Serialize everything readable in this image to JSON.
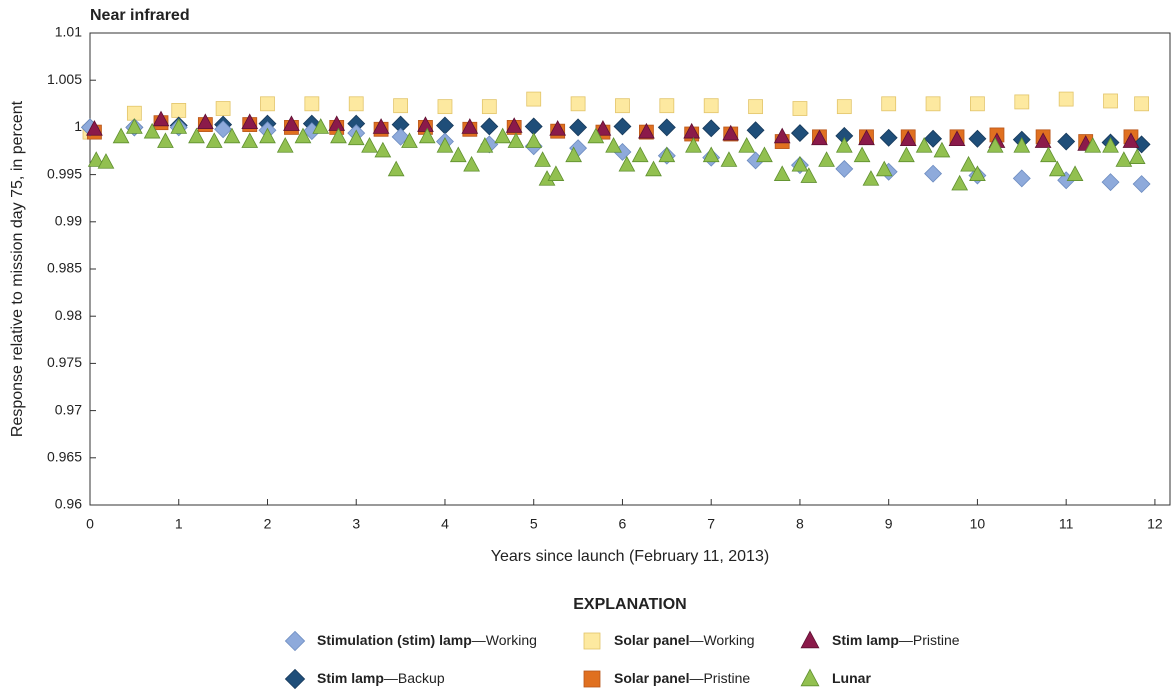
{
  "chart_data": {
    "type": "scatter",
    "title": "Near infrared",
    "xlabel": "Years since launch (February 11, 2013)",
    "ylabel": "Response relative to mission day 75, in percent",
    "legend_title": "EXPLANATION",
    "xlim": [
      0,
      12.17
    ],
    "ylim": [
      0.96,
      1.01
    ],
    "xticks": [
      0,
      1,
      2,
      3,
      4,
      5,
      6,
      7,
      8,
      9,
      10,
      11,
      12
    ],
    "yticks": [
      0.96,
      0.965,
      0.97,
      0.975,
      0.98,
      0.985,
      0.99,
      0.995,
      1,
      1.005,
      1.01
    ],
    "series": [
      {
        "name": "Stimulation (stim) lamp—Working",
        "marker": "diamond",
        "color": "#8eaadb",
        "x": [
          0,
          0.5,
          1,
          1.5,
          2,
          2.5,
          3,
          3.5,
          4,
          4.5,
          5,
          5.5,
          6,
          6.5,
          7,
          7.5,
          8,
          8.5,
          9,
          9.5,
          10,
          10.5,
          11,
          11.5,
          11.85
        ],
        "values": [
          1.0,
          1.0,
          1.0,
          0.9998,
          0.9997,
          0.9996,
          0.9994,
          0.999,
          0.9985,
          0.9982,
          0.998,
          0.9978,
          0.9974,
          0.997,
          0.9968,
          0.9965,
          0.996,
          0.9956,
          0.9953,
          0.9951,
          0.9949,
          0.9946,
          0.9944,
          0.9942,
          0.994
        ]
      },
      {
        "name": "Solar panel—Working",
        "marker": "square",
        "color": "#fde9a0",
        "x": [
          0,
          0.5,
          1,
          1.5,
          2,
          2.5,
          3,
          3.5,
          4,
          4.5,
          5,
          5.5,
          6,
          6.5,
          7,
          7.5,
          8,
          8.5,
          9,
          9.5,
          10,
          10.5,
          11,
          11.5,
          11.85
        ],
        "values": [
          0.9995,
          1.0015,
          1.0018,
          1.002,
          1.0025,
          1.0025,
          1.0025,
          1.0023,
          1.0022,
          1.0022,
          1.003,
          1.0025,
          1.0023,
          1.0023,
          1.0023,
          1.0022,
          1.002,
          1.0022,
          1.0025,
          1.0025,
          1.0025,
          1.0027,
          1.003,
          1.0028,
          1.0025
        ]
      },
      {
        "name": "Stim lamp—Pristine",
        "marker": "triangle",
        "color": "#8b1a4a",
        "x": [
          0.05,
          0.8,
          1.3,
          1.8,
          2.27,
          2.78,
          3.28,
          3.78,
          4.28,
          4.78,
          5.27,
          5.78,
          6.27,
          6.78,
          7.22,
          7.8,
          8.22,
          8.75,
          9.22,
          9.77,
          10.22,
          10.74,
          11.22,
          11.73
        ],
        "values": [
          0.9998,
          1.0008,
          1.0005,
          1.0005,
          1.0003,
          1.0003,
          1.0,
          1.0002,
          1.0,
          1.0001,
          0.9998,
          0.9998,
          0.9995,
          0.9995,
          0.9993,
          0.999,
          0.9988,
          0.9988,
          0.9987,
          0.9987,
          0.9985,
          0.9985,
          0.9982,
          0.9985
        ]
      },
      {
        "name": "Stim lamp—Backup",
        "marker": "diamond",
        "color": "#1f4e79",
        "x": [
          0,
          0.5,
          1,
          1.5,
          2,
          2.5,
          3,
          3.5,
          4,
          4.5,
          5,
          5.5,
          6,
          6.5,
          7,
          7.5,
          8,
          8.5,
          9,
          9.5,
          10,
          10.5,
          11,
          11.5,
          11.85
        ],
        "values": [
          1.0,
          1.0,
          1.0002,
          1.0003,
          1.0004,
          1.0004,
          1.0004,
          1.0003,
          1.0002,
          1.0001,
          1.0001,
          1.0,
          1.0001,
          1.0,
          0.9999,
          0.9997,
          0.9994,
          0.9991,
          0.9989,
          0.9988,
          0.9988,
          0.9987,
          0.9985,
          0.9984,
          0.9982
        ]
      },
      {
        "name": "Solar panel—Pristine",
        "marker": "square",
        "color": "#e07020",
        "x": [
          0.05,
          0.8,
          1.3,
          1.8,
          2.27,
          2.78,
          3.28,
          3.78,
          4.28,
          4.78,
          5.27,
          5.78,
          6.27,
          6.78,
          7.22,
          7.8,
          8.22,
          8.75,
          9.22,
          9.77,
          10.22,
          10.74,
          11.22,
          11.73
        ],
        "values": [
          0.9995,
          1.0005,
          1.0003,
          1.0003,
          1.0,
          1.0,
          0.9998,
          1.0,
          0.9998,
          1.0,
          0.9996,
          0.9995,
          0.9995,
          0.9993,
          0.9993,
          0.9985,
          0.999,
          0.999,
          0.999,
          0.999,
          0.9992,
          0.999,
          0.9985,
          0.999
        ]
      },
      {
        "name": "Lunar",
        "marker": "triangle",
        "color": "#92c050",
        "x": [
          0.07,
          0.18,
          0.35,
          0.5,
          0.7,
          0.85,
          1.0,
          1.2,
          1.4,
          1.6,
          1.8,
          2.0,
          2.2,
          2.4,
          2.6,
          2.8,
          3.0,
          3.15,
          3.3,
          3.45,
          3.6,
          3.8,
          4.0,
          4.15,
          4.3,
          4.45,
          4.65,
          4.8,
          5.0,
          5.1,
          5.15,
          5.25,
          5.45,
          5.7,
          5.9,
          6.05,
          6.2,
          6.35,
          6.5,
          6.8,
          7.0,
          7.2,
          7.4,
          7.6,
          7.8,
          8.0,
          8.1,
          8.3,
          8.5,
          8.7,
          8.8,
          8.95,
          9.2,
          9.4,
          9.6,
          9.8,
          9.9,
          10.0,
          10.2,
          10.5,
          10.8,
          10.9,
          11.1,
          11.3,
          11.5,
          11.65,
          11.8
        ],
        "values": [
          0.9965,
          0.9963,
          0.999,
          1.0,
          0.9995,
          0.9985,
          1.0,
          0.999,
          0.9985,
          0.999,
          0.9985,
          0.999,
          0.998,
          0.999,
          1.0,
          0.999,
          0.9988,
          0.998,
          0.9975,
          0.9955,
          0.9985,
          0.999,
          0.998,
          0.997,
          0.996,
          0.998,
          0.999,
          0.9985,
          0.9985,
          0.9965,
          0.9945,
          0.995,
          0.997,
          0.999,
          0.998,
          0.996,
          0.997,
          0.9955,
          0.997,
          0.998,
          0.997,
          0.9965,
          0.998,
          0.997,
          0.995,
          0.996,
          0.9948,
          0.9965,
          0.998,
          0.997,
          0.9945,
          0.9955,
          0.997,
          0.998,
          0.9975,
          0.994,
          0.996,
          0.995,
          0.998,
          0.998,
          0.997,
          0.9955,
          0.995,
          0.998,
          0.998,
          0.9965,
          0.9968
        ]
      }
    ]
  }
}
